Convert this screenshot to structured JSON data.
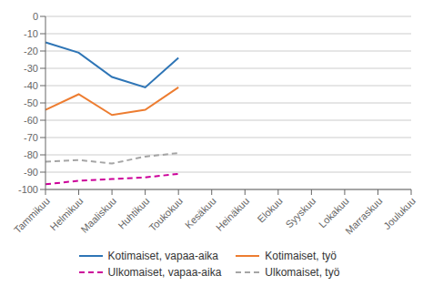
{
  "chart_data": {
    "type": "line",
    "categories": [
      "Tammikuu",
      "Helmikuu",
      "Maaliskuu",
      "Huhtikuu",
      "Toukokuu",
      "Kesäkuu",
      "Heinäkuu",
      "Elokuu",
      "Syyskuu",
      "Lokakuu",
      "Marraskuu",
      "Joulukuu"
    ],
    "series": [
      {
        "name": "Kotimaiset, vapaa-aika",
        "color": "#2e75b6",
        "line_style": "solid",
        "values": [
          -15,
          -21,
          -35,
          -41,
          -24,
          null,
          null,
          null,
          null,
          null,
          null,
          null
        ]
      },
      {
        "name": "Kotimaiset, työ",
        "color": "#ed7d31",
        "line_style": "solid",
        "values": [
          -54,
          -45,
          -57,
          -54,
          -41,
          null,
          null,
          null,
          null,
          null,
          null,
          null
        ]
      },
      {
        "name": "Ulkomaiset, vapaa-aika",
        "color": "#cc0099",
        "line_style": "dashed",
        "values": [
          -97,
          -95,
          -94,
          -93,
          -91,
          null,
          null,
          null,
          null,
          null,
          null,
          null
        ]
      },
      {
        "name": "Ulkomaiset, työ",
        "color": "#a5a5a5",
        "line_style": "dashed",
        "values": [
          -84,
          -83,
          -85,
          -81,
          -79,
          null,
          null,
          null,
          null,
          null,
          null,
          null
        ]
      }
    ],
    "ylim": [
      -100,
      0
    ],
    "yticks": [
      0,
      -10,
      -20,
      -30,
      -40,
      -50,
      -60,
      -70,
      -80,
      -90,
      -100
    ],
    "grid": true,
    "legend": "bottom"
  }
}
